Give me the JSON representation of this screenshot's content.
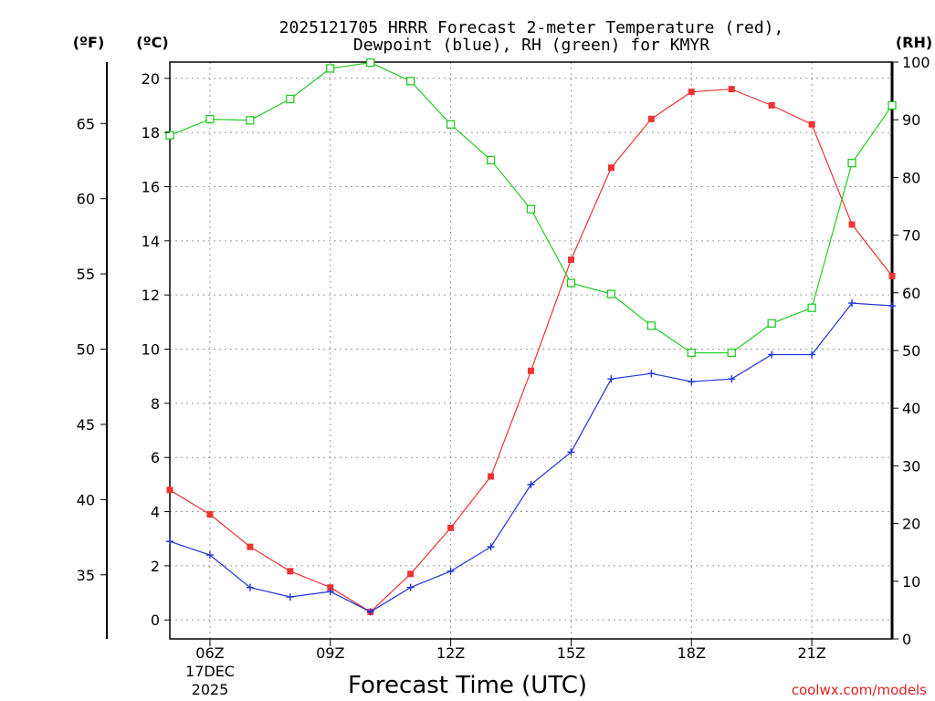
{
  "chart_data": {
    "type": "line",
    "title_lines": [
      "2025121705 HRRR Forecast 2-meter Temperature (red),",
      "Dewpoint (blue), RH (green) for KMYR"
    ],
    "units": {
      "fahrenheit": "(ºF)",
      "celsius": "(ºC)",
      "rh": "(RH)"
    },
    "xlabel": "Forecast Time (UTC)",
    "x_hours": [
      5,
      6,
      7,
      8,
      9,
      10,
      11,
      12,
      13,
      14,
      15,
      16,
      17,
      18,
      19,
      20,
      21,
      22,
      23
    ],
    "x_range": [
      5,
      23
    ],
    "x_ticks": [
      {
        "hour": 6,
        "label": "06Z"
      },
      {
        "hour": 9,
        "label": "09Z"
      },
      {
        "hour": 12,
        "label": "12Z"
      },
      {
        "hour": 15,
        "label": "15Z"
      },
      {
        "hour": 18,
        "label": "18Z"
      },
      {
        "hour": 21,
        "label": "21Z"
      }
    ],
    "date_labels": [
      "17DEC",
      "2025"
    ],
    "celsius_axis": {
      "range": [
        -0.7,
        20.6
      ],
      "ticks": [
        0,
        2,
        4,
        6,
        8,
        10,
        12,
        14,
        16,
        18,
        20
      ]
    },
    "fahrenheit_axis": {
      "ticks": [
        35,
        40,
        45,
        50,
        55,
        60,
        65
      ]
    },
    "rh_axis": {
      "range": [
        0,
        100
      ],
      "ticks": [
        0,
        10,
        20,
        30,
        40,
        50,
        60,
        70,
        80,
        90,
        100
      ]
    },
    "series": [
      {
        "name": "Temperature",
        "unit": "C",
        "color": "#ee3333",
        "marker": "filled-square",
        "values": [
          4.8,
          3.9,
          2.7,
          1.8,
          1.2,
          0.3,
          1.7,
          3.4,
          5.3,
          9.2,
          13.3,
          16.7,
          18.5,
          19.5,
          19.6,
          19.0,
          18.3,
          14.6,
          12.7
        ]
      },
      {
        "name": "Dewpoint",
        "unit": "C",
        "color": "#2233dd",
        "marker": "plus",
        "values": [
          2.9,
          2.4,
          1.2,
          0.85,
          1.05,
          0.3,
          1.2,
          1.8,
          2.7,
          5.0,
          6.2,
          8.9,
          9.1,
          8.8,
          8.9,
          9.8,
          9.8,
          11.7,
          11.6
        ]
      },
      {
        "name": "RH",
        "unit": "%",
        "color": "#22cc22",
        "marker": "open-square",
        "values": [
          87.3,
          90.1,
          89.9,
          93.6,
          98.9,
          99.9,
          96.7,
          89.2,
          83.0,
          74.5,
          61.7,
          59.8,
          54.3,
          49.6,
          49.6,
          54.7,
          57.4,
          82.5,
          92.5
        ]
      }
    ],
    "grid": "dotted",
    "credit": "coolwx.com/models"
  }
}
